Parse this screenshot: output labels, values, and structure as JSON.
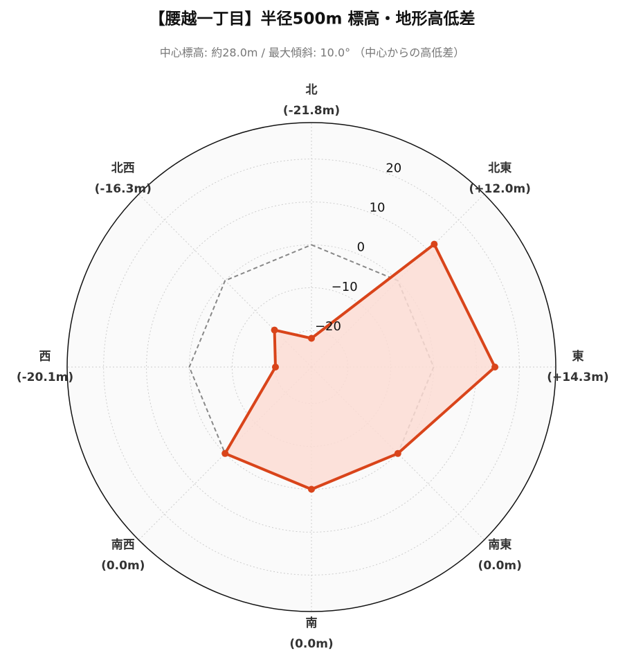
{
  "chart_data": {
    "type": "radar",
    "title": "【腰越一丁目】半径500m 標高・地形高低差",
    "subtitle": "中心標高: 約28.0m / 最大傾斜: 10.0° （中心からの高低差）",
    "categories": [
      "北",
      "北東",
      "東",
      "南東",
      "南",
      "南西",
      "西",
      "北西"
    ],
    "values": [
      -21.8,
      12.0,
      14.3,
      0.0,
      0.0,
      0.0,
      -20.1,
      -16.3
    ],
    "value_labels": [
      "(-21.8m)",
      "(+12.0m)",
      "(+14.3m)",
      "(0.0m)",
      "(0.0m)",
      "(0.0m)",
      "(-20.1m)",
      "(-16.3m)"
    ],
    "color": "#d9441a",
    "fill_color": "#fcdcd3",
    "reference_line": 0,
    "ylim": [
      -28.5,
      28.5
    ],
    "yticks": [
      {
        "value": -20,
        "label": "−20"
      },
      {
        "value": -10,
        "label": "−10"
      },
      0,
      10,
      20
    ],
    "grid": true
  }
}
